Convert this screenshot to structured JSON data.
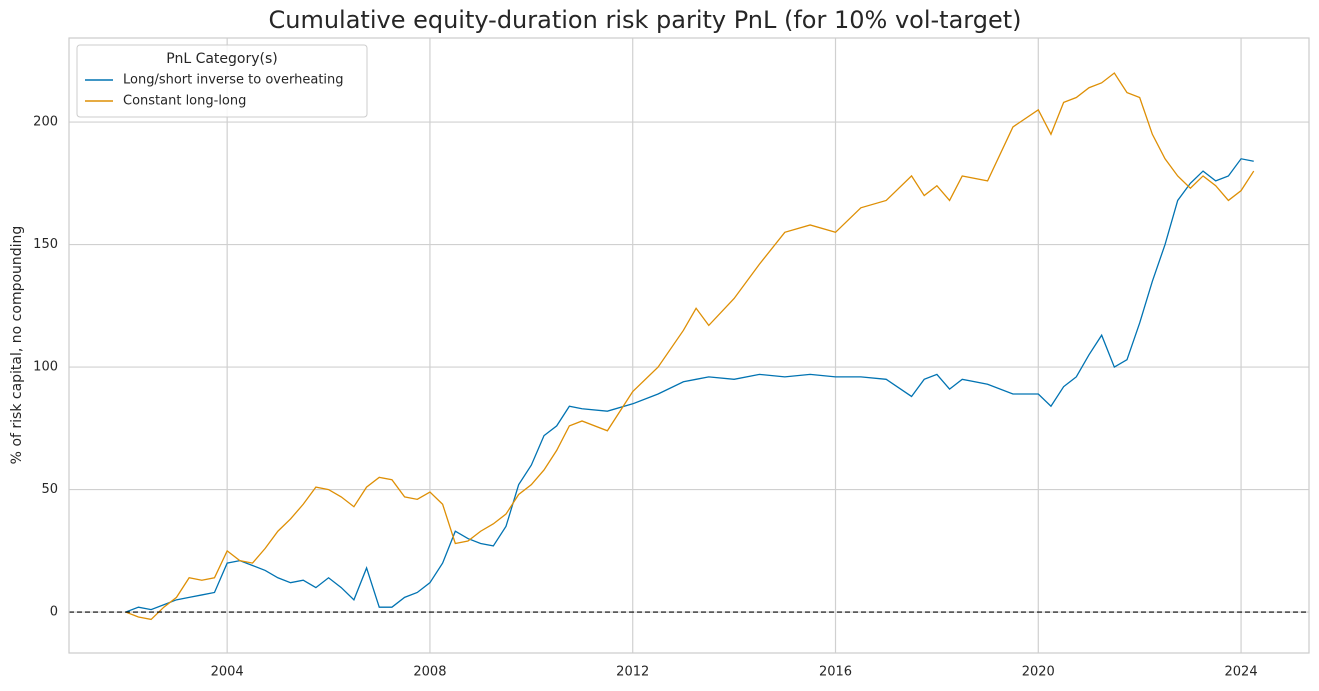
{
  "chart_data": {
    "type": "line",
    "title": "Cumulative equity-duration risk parity PnL (for 10% vol-target)",
    "y_label": "% of risk capital, no compounding",
    "legend_title": "PnL Category(s)",
    "legend_position": "upper left",
    "grid": true,
    "hline": 0,
    "x": [
      2002,
      2002.25,
      2002.5,
      2002.75,
      2003,
      2003.25,
      2003.5,
      2003.75,
      2004,
      2004.25,
      2004.5,
      2004.75,
      2005,
      2005.25,
      2005.5,
      2005.75,
      2006,
      2006.25,
      2006.5,
      2006.75,
      2007,
      2007.25,
      2007.5,
      2007.75,
      2008,
      2008.25,
      2008.5,
      2008.75,
      2009,
      2009.25,
      2009.5,
      2009.75,
      2010,
      2010.25,
      2010.5,
      2010.75,
      2011,
      2011.5,
      2012,
      2012.5,
      2013,
      2013.25,
      2013.5,
      2014,
      2014.5,
      2015,
      2015.5,
      2016,
      2016.5,
      2017,
      2017.5,
      2017.75,
      2018,
      2018.25,
      2018.5,
      2019,
      2019.5,
      2020,
      2020.25,
      2020.5,
      2020.75,
      2021,
      2021.25,
      2021.5,
      2021.75,
      2022,
      2022.25,
      2022.5,
      2022.75,
      2023,
      2023.25,
      2023.5,
      2023.75,
      2024,
      2024.25
    ],
    "series": [
      {
        "name": "Long/short inverse to overheating",
        "color": "#0173b2",
        "values": [
          0,
          2,
          1,
          3,
          5,
          6,
          7,
          8,
          20,
          21,
          19,
          17,
          14,
          12,
          13,
          10,
          14,
          10,
          5,
          18,
          2,
          2,
          6,
          8,
          12,
          20,
          33,
          30,
          28,
          27,
          35,
          52,
          60,
          72,
          76,
          84,
          83,
          82,
          85,
          89,
          94,
          95,
          96,
          95,
          97,
          96,
          97,
          96,
          96,
          95,
          88,
          95,
          97,
          91,
          95,
          93,
          89,
          89,
          84,
          92,
          96,
          105,
          113,
          100,
          103,
          118,
          135,
          150,
          168,
          175,
          180,
          176,
          178,
          185,
          184
        ]
      },
      {
        "name": "Constant long-long",
        "color": "#de8f05",
        "values": [
          0,
          -2,
          -3,
          2,
          6,
          14,
          13,
          14,
          25,
          21,
          20,
          26,
          33,
          38,
          44,
          51,
          50,
          47,
          43,
          51,
          55,
          54,
          47,
          46,
          49,
          44,
          28,
          29,
          33,
          36,
          40,
          48,
          52,
          58,
          66,
          76,
          78,
          74,
          90,
          100,
          115,
          124,
          117,
          128,
          142,
          155,
          158,
          155,
          165,
          168,
          178,
          170,
          174,
          168,
          178,
          176,
          198,
          205,
          195,
          208,
          210,
          214,
          216,
          220,
          212,
          210,
          195,
          185,
          178,
          173,
          178,
          174,
          168,
          172,
          180
        ]
      }
    ],
    "xlim": [
      2000.88,
      2025.34
    ],
    "xticks": [
      2004,
      2008,
      2012,
      2016,
      2020,
      2024
    ],
    "ylim": [
      -16.7,
      234.3
    ],
    "yticks": [
      0,
      50,
      100,
      150,
      200
    ]
  }
}
